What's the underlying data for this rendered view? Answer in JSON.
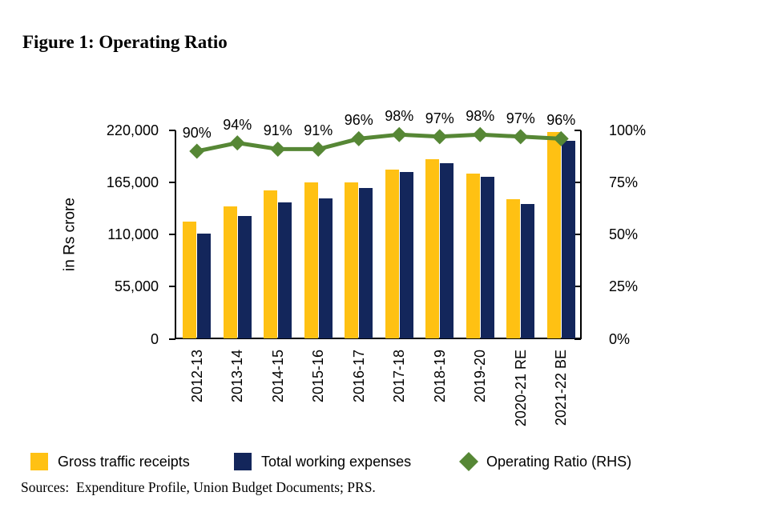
{
  "title": "Figure 1: Operating Ratio",
  "chart_data": {
    "type": "bar",
    "subtype": "grouped bars with overlaid line on secondary axis",
    "categories": [
      "2012-13",
      "2013-14",
      "2014-15",
      "2015-16",
      "2016-17",
      "2017-18",
      "2018-19",
      "2019-20",
      "2020-21 RE",
      "2021-22 BE"
    ],
    "series": [
      {
        "name": "Gross traffic receipts",
        "type": "bar",
        "axis": "left",
        "color": "#FFC113",
        "values": [
          124000,
          140000,
          157000,
          165000,
          165000,
          179000,
          190000,
          174000,
          147000,
          218000
        ]
      },
      {
        "name": "Total working expenses",
        "type": "bar",
        "axis": "left",
        "color": "#13265B",
        "values": [
          111000,
          130000,
          144000,
          148000,
          159000,
          176000,
          185000,
          171000,
          142000,
          209000
        ]
      },
      {
        "name": "Operating Ratio (RHS)",
        "type": "line",
        "axis": "right",
        "color": "#568735",
        "marker": "diamond",
        "values": [
          90,
          94,
          91,
          91,
          96,
          98,
          97,
          98,
          97,
          96
        ]
      }
    ],
    "point_labels": [
      "90%",
      "94%",
      "91%",
      "91%",
      "96%",
      "98%",
      "97%",
      "98%",
      "97%",
      "96%"
    ],
    "left_axis": {
      "label": "in Rs crore",
      "min": 0,
      "max": 220000,
      "tick_labels": [
        "220,000",
        "165,000",
        "110,000",
        "55,000",
        "0"
      ]
    },
    "right_axis": {
      "min": 0,
      "max": 100,
      "tick_labels": [
        "100%",
        "75%",
        "50%",
        "25%",
        "0%"
      ]
    },
    "grid": false,
    "legend_position": "bottom"
  },
  "legend": {
    "items": [
      {
        "label": "Gross traffic receipts",
        "swatch": "square",
        "color": "#FFC113"
      },
      {
        "label": "Total working expenses",
        "swatch": "square",
        "color": "#13265B"
      },
      {
        "label": "Operating Ratio (RHS)",
        "swatch": "diamond",
        "color": "#568735"
      }
    ]
  },
  "sources": "Sources:  Expenditure Profile, Union Budget Documents; PRS."
}
